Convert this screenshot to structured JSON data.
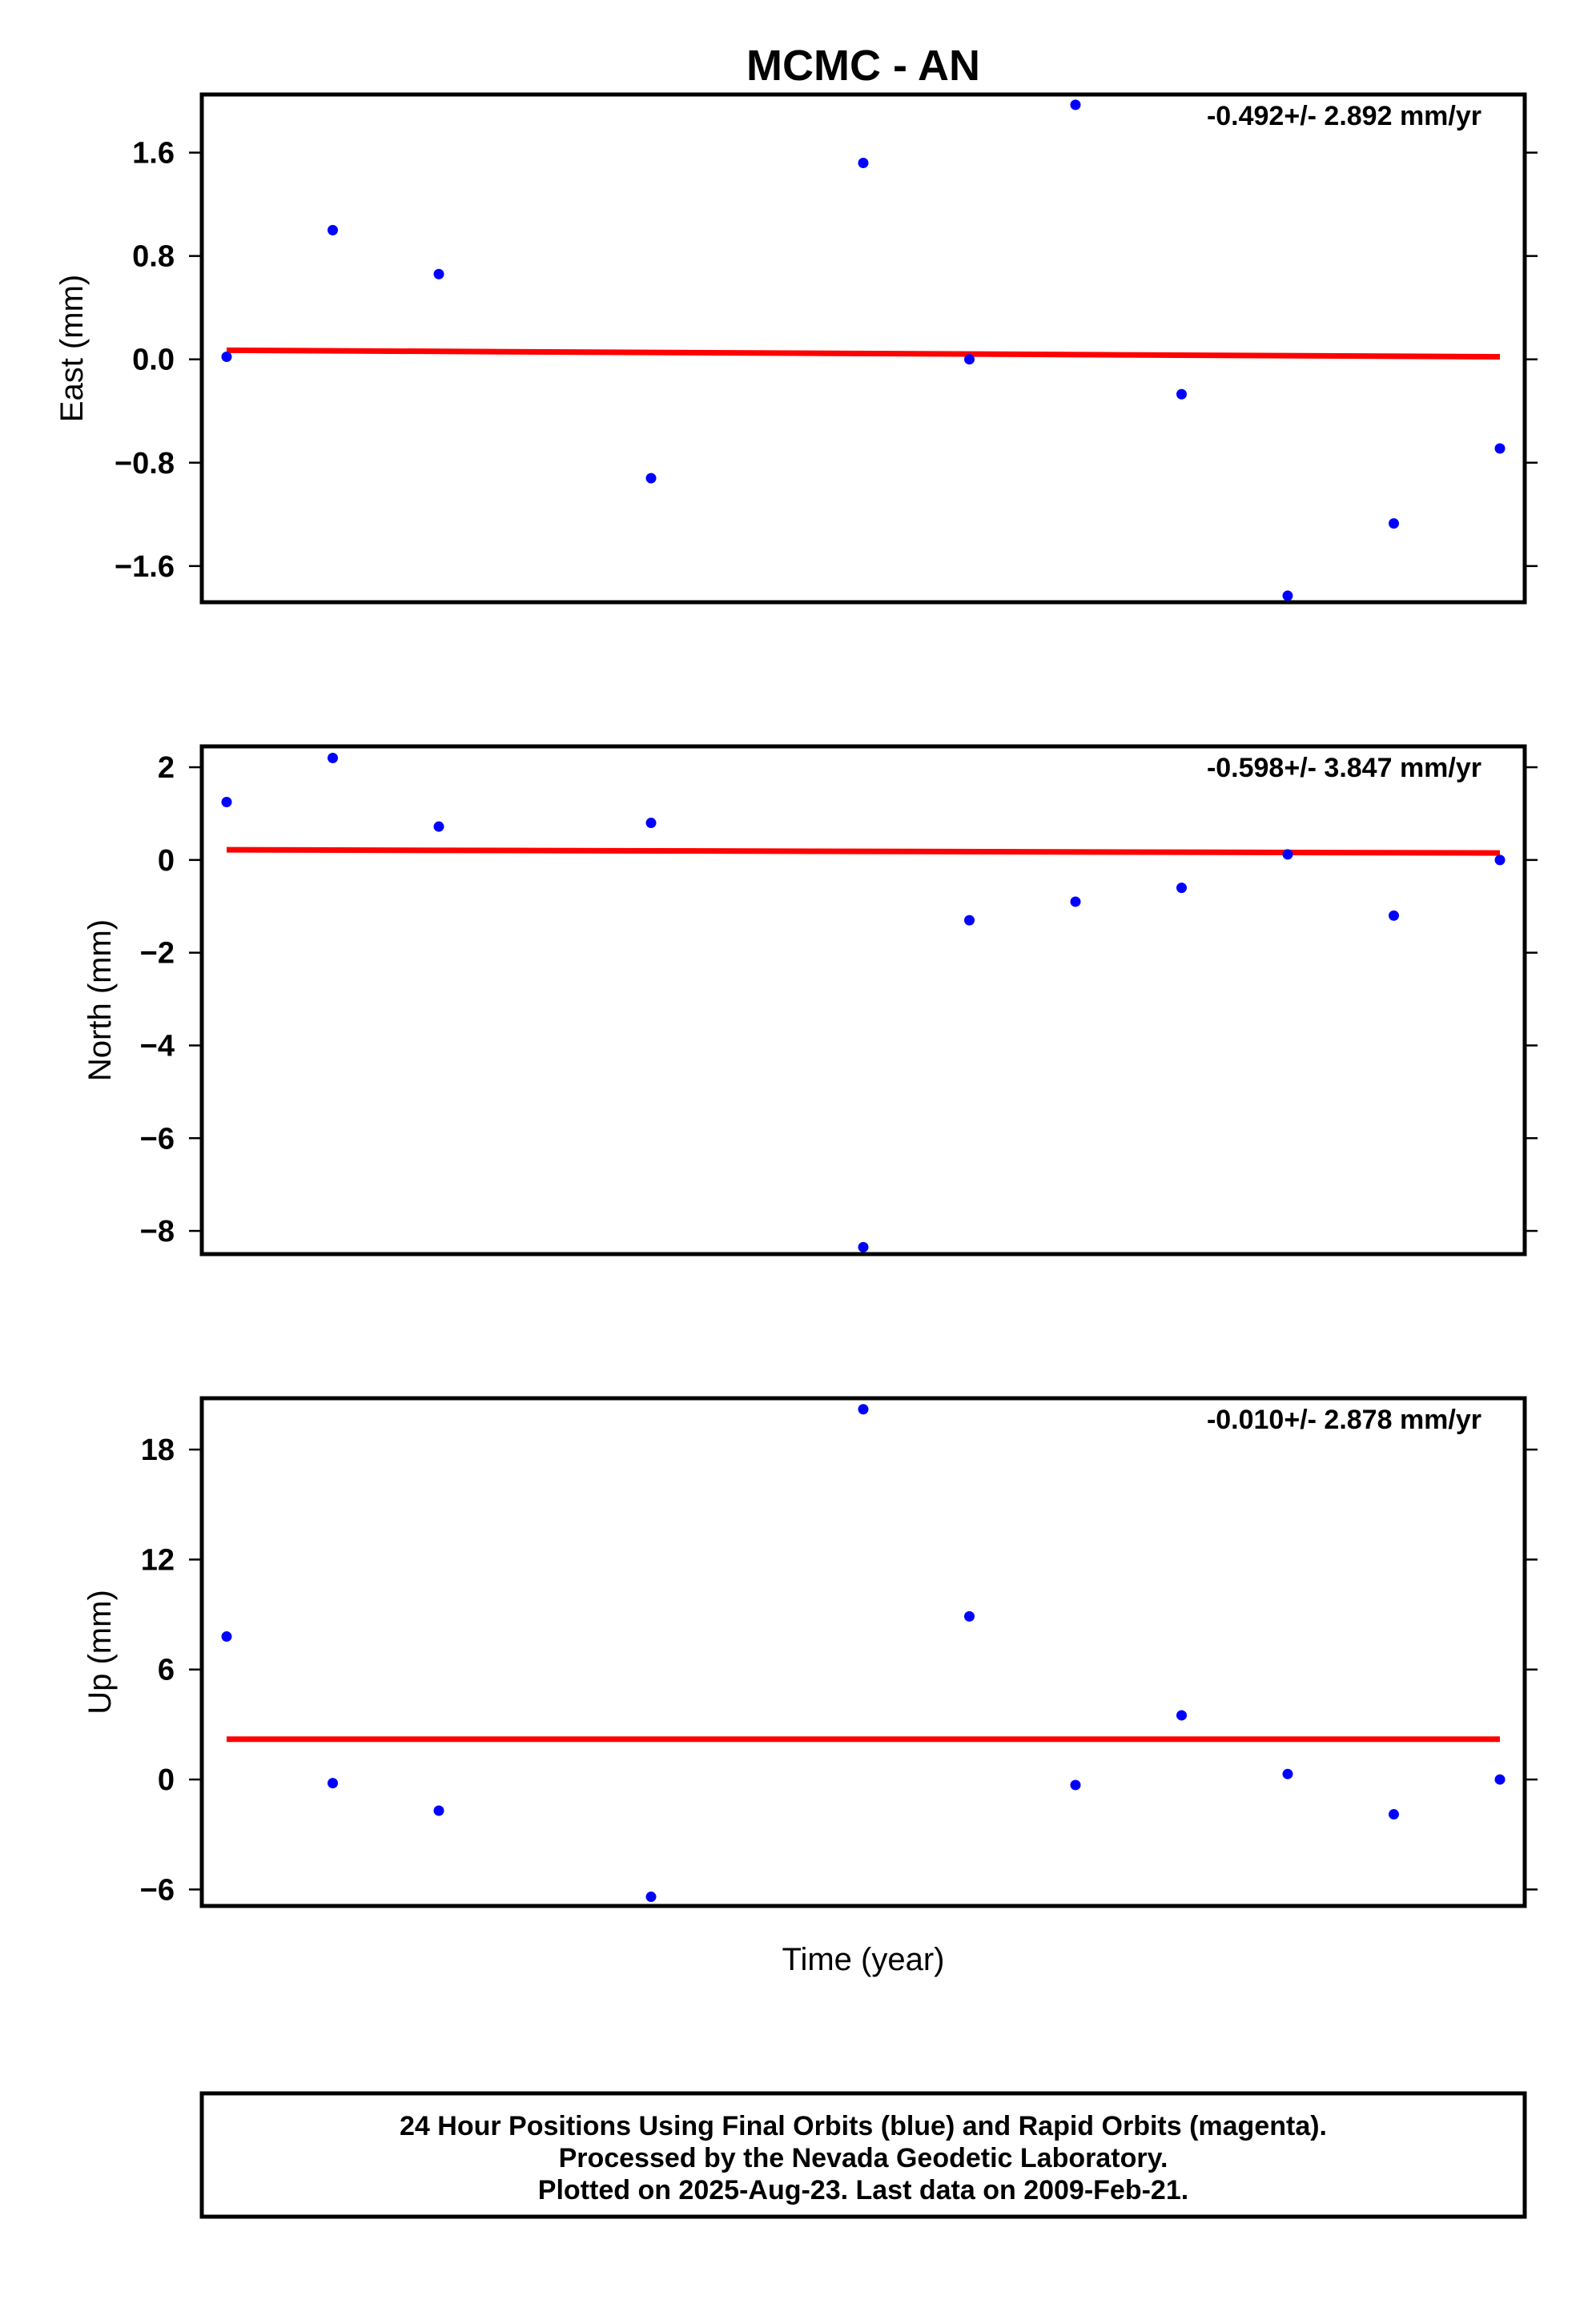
{
  "title": "MCMC - AN",
  "xlabel": "Time (year)",
  "footer": {
    "line1": "24 Hour Positions Using Final Orbits (blue) and Rapid Orbits (magenta).",
    "line2": "Processed by the Nevada Geodetic Laboratory.",
    "line3": "Plotted on 2025-Aug-23. Last data on 2009-Feb-21."
  },
  "colors": {
    "points": "#0000ff",
    "trend": "#ff0000",
    "frame": "#000000"
  },
  "chart_data": [
    {
      "type": "scatter",
      "ylabel": "East (mm)",
      "rate_label": "-0.492+/- 2.892 mm/yr",
      "ylim": [
        -1.88,
        2.05
      ],
      "yticks": [
        1.6,
        0.8,
        0.0,
        -0.8,
        -1.6
      ],
      "ytick_labels": [
        "1.6",
        "0.8",
        "0.0",
        "−0.8",
        "−1.6"
      ],
      "x_index": [
        0,
        1,
        2,
        4,
        6,
        7,
        8,
        9,
        10,
        11,
        12
      ],
      "values": [
        0.02,
        1.0,
        0.66,
        -0.92,
        1.52,
        0.0,
        1.97,
        -0.27,
        -1.83,
        -1.27,
        -0.69
      ],
      "trend": [
        0.07,
        0.02
      ],
      "grid": false
    },
    {
      "type": "scatter",
      "ylabel": "North (mm)",
      "rate_label": "-0.598+/- 3.847 mm/yr",
      "ylim": [
        -8.5,
        2.45
      ],
      "yticks": [
        2,
        0,
        -2,
        -4,
        -6,
        -8
      ],
      "ytick_labels": [
        "2",
        "0",
        "−2",
        "−4",
        "−6",
        "−8"
      ],
      "x_index": [
        0,
        1,
        2,
        4,
        6,
        7,
        8,
        9,
        10,
        11,
        12
      ],
      "values": [
        1.25,
        2.2,
        0.72,
        0.8,
        -8.35,
        -1.3,
        -0.9,
        -0.6,
        0.12,
        -1.2,
        0.0
      ],
      "trend": [
        0.22,
        0.15
      ],
      "grid": false
    },
    {
      "type": "scatter",
      "ylabel": "Up (mm)",
      "rate_label": "-0.010+/- 2.878 mm/yr",
      "ylim": [
        -6.9,
        20.8
      ],
      "yticks": [
        18,
        12,
        6,
        0,
        -6
      ],
      "ytick_labels": [
        "18",
        "12",
        "6",
        "0",
        "−6"
      ],
      "x_index": [
        0,
        1,
        2,
        4,
        6,
        7,
        8,
        9,
        10,
        11,
        12
      ],
      "values": [
        7.8,
        -0.2,
        -1.7,
        -6.4,
        20.2,
        8.9,
        -0.3,
        3.5,
        0.3,
        -1.9,
        0.0
      ],
      "trend": [
        2.2,
        2.2
      ],
      "grid": false
    }
  ]
}
